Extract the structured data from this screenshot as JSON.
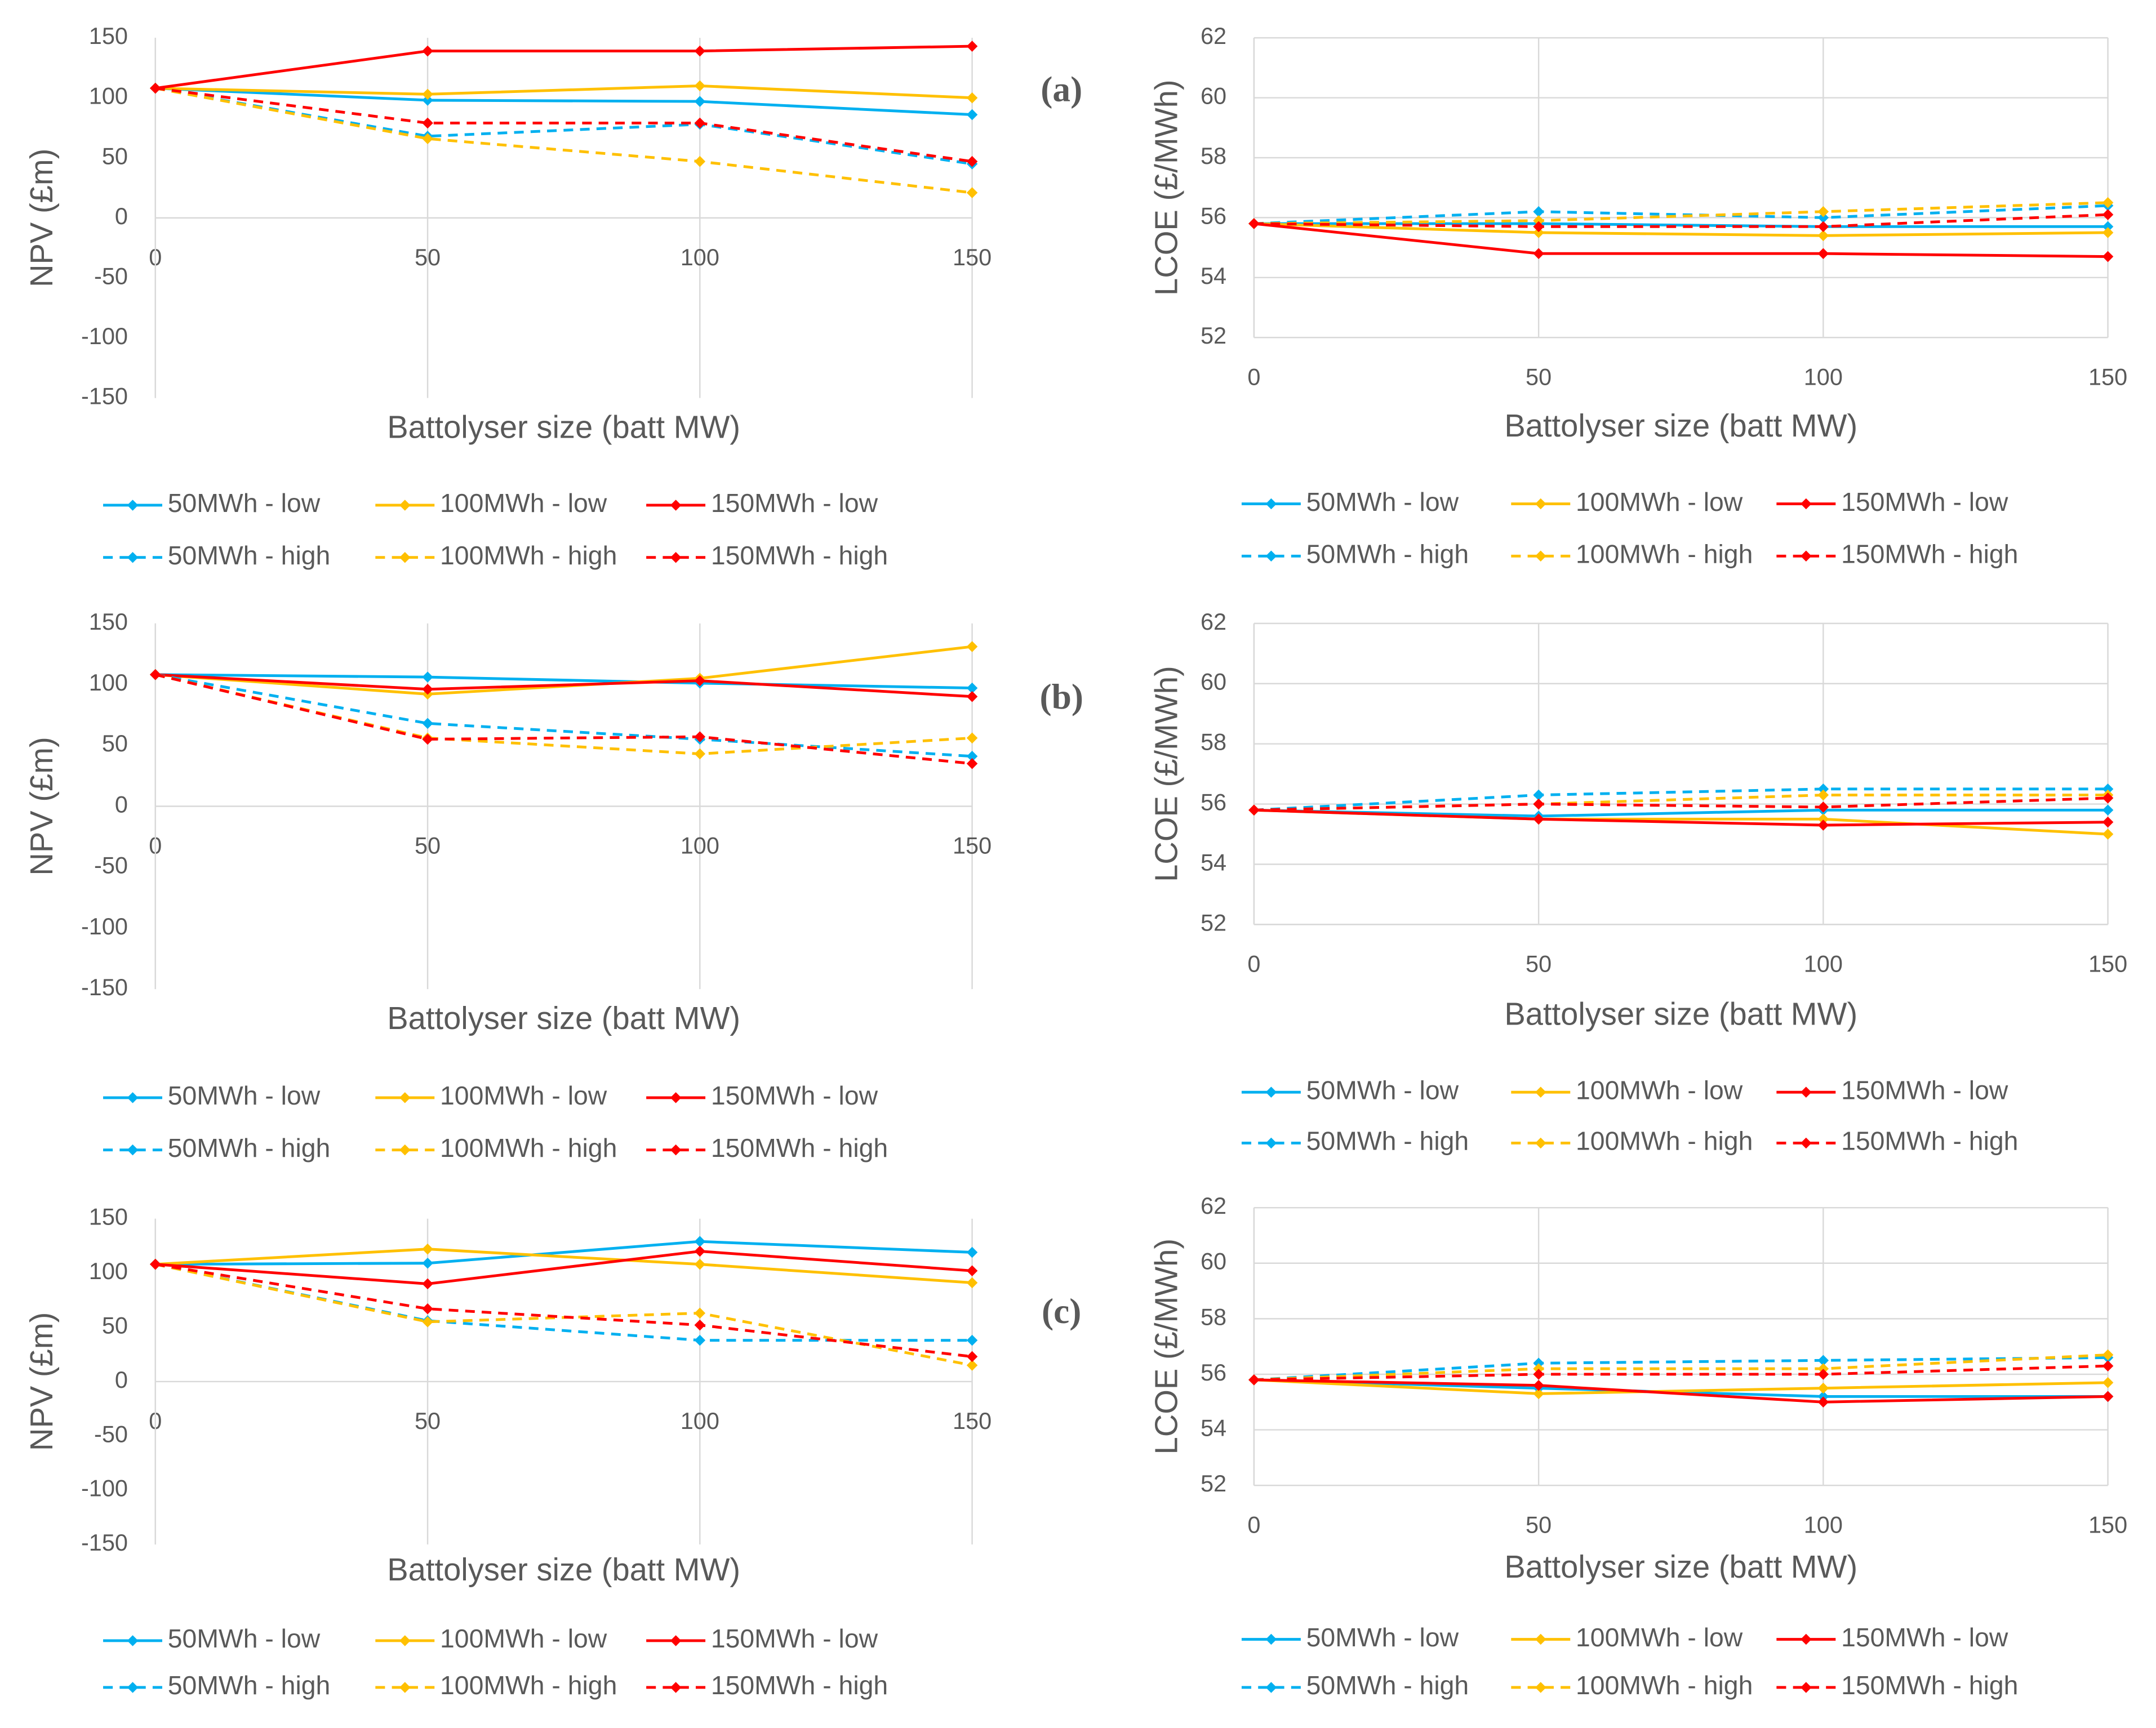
{
  "chart_data": [
    {
      "type": "line",
      "annotation": "(a)",
      "y_label": "NPV (£m)",
      "x_label": "Battolyser  size (batt MW)",
      "label_color": "#000000",
      "x": [
        0,
        50,
        100,
        150
      ],
      "xlim": [
        0,
        150
      ],
      "xticks": [
        0,
        50,
        100,
        150
      ],
      "ylim": [
        -150,
        150
      ],
      "yticks": [
        -150,
        -100,
        -50,
        0,
        50,
        100,
        150
      ],
      "grid": "x",
      "legend": "bottom",
      "series": [
        {
          "name": "50MWh - low",
          "color": "#00b0f0",
          "dashed": false,
          "values": [
            108,
            98,
            97,
            86
          ]
        },
        {
          "name": "100MWh - low",
          "color": "#ffc000",
          "dashed": false,
          "values": [
            108,
            103,
            110,
            100
          ]
        },
        {
          "name": "150MWh - low",
          "color": "#ff0000",
          "dashed": false,
          "values": [
            108,
            139,
            139,
            143
          ]
        },
        {
          "name": "50MWh - high",
          "color": "#00b0f0",
          "dashed": true,
          "values": [
            108,
            68,
            78,
            45
          ]
        },
        {
          "name": "100MWh - high",
          "color": "#ffc000",
          "dashed": true,
          "values": [
            108,
            66,
            47,
            21
          ]
        },
        {
          "name": "150MWh - high",
          "color": "#ff0000",
          "dashed": true,
          "values": [
            108,
            79,
            79,
            47
          ]
        }
      ]
    },
    {
      "type": "line",
      "y_label": "LCOE (£/MWh)",
      "x_label": "Battolyser size (batt MW)",
      "label_color": "#7f7f7f",
      "x": [
        0,
        50,
        100,
        150
      ],
      "xlim": [
        0,
        150
      ],
      "xticks": [
        0,
        50,
        100,
        150
      ],
      "ylim": [
        52,
        62
      ],
      "yticks": [
        52,
        54,
        56,
        58,
        60,
        62
      ],
      "grid": "both",
      "legend": "bottom",
      "series": [
        {
          "name": "50MWh - low",
          "color": "#00b0f0",
          "dashed": false,
          "values": [
            55.8,
            55.8,
            55.7,
            55.7
          ]
        },
        {
          "name": "100MWh - low",
          "color": "#ffc000",
          "dashed": false,
          "values": [
            55.8,
            55.5,
            55.4,
            55.5
          ]
        },
        {
          "name": "150MWh - low",
          "color": "#ff0000",
          "dashed": false,
          "values": [
            55.8,
            54.8,
            54.8,
            54.7
          ]
        },
        {
          "name": "50MWh - high",
          "color": "#00b0f0",
          "dashed": true,
          "values": [
            55.8,
            56.2,
            56.0,
            56.4
          ]
        },
        {
          "name": "100MWh - high",
          "color": "#ffc000",
          "dashed": true,
          "values": [
            55.8,
            55.9,
            56.2,
            56.5
          ]
        },
        {
          "name": "150MWh - high",
          "color": "#ff0000",
          "dashed": true,
          "values": [
            55.8,
            55.7,
            55.7,
            56.1
          ]
        }
      ]
    },
    {
      "type": "line",
      "annotation": "(b)",
      "y_label": "NPV (£m)",
      "x_label": "Battolyser  size (batt MW)",
      "label_color": "#7f7f7f",
      "x": [
        0,
        50,
        100,
        150
      ],
      "xlim": [
        0,
        150
      ],
      "xticks": [
        0,
        50,
        100,
        150
      ],
      "ylim": [
        -150,
        150
      ],
      "yticks": [
        -150,
        -100,
        -50,
        0,
        50,
        100,
        150
      ],
      "grid": "x",
      "legend": "bottom",
      "series": [
        {
          "name": "50MWh - low",
          "color": "#00b0f0",
          "dashed": false,
          "values": [
            108,
            106,
            101,
            97
          ]
        },
        {
          "name": "100MWh - low",
          "color": "#ffc000",
          "dashed": false,
          "values": [
            108,
            92,
            105,
            131
          ]
        },
        {
          "name": "150MWh - low",
          "color": "#ff0000",
          "dashed": false,
          "values": [
            108,
            96,
            103,
            90
          ]
        },
        {
          "name": "50MWh - high",
          "color": "#00b0f0",
          "dashed": true,
          "values": [
            108,
            68,
            55,
            41
          ]
        },
        {
          "name": "100MWh - high",
          "color": "#ffc000",
          "dashed": true,
          "values": [
            108,
            56,
            43,
            56
          ]
        },
        {
          "name": "150MWh - high",
          "color": "#ff0000",
          "dashed": true,
          "values": [
            108,
            55,
            57,
            35
          ]
        }
      ]
    },
    {
      "type": "line",
      "y_label": "LCOE (£/MWh)",
      "x_label": "Battolyser size (batt MW)",
      "label_color": "#000000",
      "x": [
        0,
        50,
        100,
        150
      ],
      "xlim": [
        0,
        150
      ],
      "xticks": [
        0,
        50,
        100,
        150
      ],
      "ylim": [
        52,
        62
      ],
      "yticks": [
        52,
        54,
        56,
        58,
        60,
        62
      ],
      "grid": "both",
      "legend": "bottom",
      "series": [
        {
          "name": "50MWh - low",
          "color": "#00b0f0",
          "dashed": false,
          "values": [
            55.8,
            55.6,
            55.8,
            55.8
          ]
        },
        {
          "name": "100MWh - low",
          "color": "#ffc000",
          "dashed": false,
          "values": [
            55.8,
            55.5,
            55.5,
            55.0
          ]
        },
        {
          "name": "150MWh - low",
          "color": "#ff0000",
          "dashed": false,
          "values": [
            55.8,
            55.5,
            55.3,
            55.4
          ]
        },
        {
          "name": "50MWh - high",
          "color": "#00b0f0",
          "dashed": true,
          "values": [
            55.8,
            56.3,
            56.5,
            56.5
          ]
        },
        {
          "name": "100MWh - high",
          "color": "#ffc000",
          "dashed": true,
          "values": [
            55.8,
            56.0,
            56.3,
            56.3
          ]
        },
        {
          "name": "150MWh - high",
          "color": "#ff0000",
          "dashed": true,
          "values": [
            55.8,
            56.0,
            55.9,
            56.2
          ]
        }
      ]
    },
    {
      "type": "line",
      "annotation": "(c)",
      "y_label": "NPV (£m)",
      "x_label": "Battolyser  size (batt MW)",
      "label_color": "#7f7f7f",
      "x": [
        0,
        50,
        100,
        150
      ],
      "xlim": [
        0,
        150
      ],
      "xticks": [
        0,
        50,
        100,
        150
      ],
      "ylim": [
        -150,
        150
      ],
      "yticks": [
        -150,
        -100,
        -50,
        0,
        50,
        100,
        150
      ],
      "grid": "x",
      "legend": "bottom",
      "series": [
        {
          "name": "50MWh - low",
          "color": "#00b0f0",
          "dashed": false,
          "values": [
            108,
            109,
            129,
            119
          ]
        },
        {
          "name": "100MWh - low",
          "color": "#ffc000",
          "dashed": false,
          "values": [
            108,
            122,
            108,
            91
          ]
        },
        {
          "name": "150MWh - low",
          "color": "#ff0000",
          "dashed": false,
          "values": [
            108,
            90,
            120,
            102
          ]
        },
        {
          "name": "50MWh - high",
          "color": "#00b0f0",
          "dashed": true,
          "values": [
            108,
            56,
            38,
            38
          ]
        },
        {
          "name": "100MWh - high",
          "color": "#ffc000",
          "dashed": true,
          "values": [
            108,
            55,
            63,
            15
          ]
        },
        {
          "name": "150MWh - high",
          "color": "#ff0000",
          "dashed": true,
          "values": [
            108,
            67,
            52,
            23
          ]
        }
      ]
    },
    {
      "type": "line",
      "y_label": "LCOE (£/MWh)",
      "x_label": "Battolyser size (batt MW)",
      "label_color": "#7f7f7f",
      "x": [
        0,
        50,
        100,
        150
      ],
      "xlim": [
        0,
        150
      ],
      "xticks": [
        0,
        50,
        100,
        150
      ],
      "ylim": [
        52,
        62
      ],
      "yticks": [
        52,
        54,
        56,
        58,
        60,
        62
      ],
      "grid": "both",
      "legend": "bottom",
      "series": [
        {
          "name": "50MWh - low",
          "color": "#00b0f0",
          "dashed": false,
          "values": [
            55.8,
            55.5,
            55.2,
            55.2
          ]
        },
        {
          "name": "100MWh - low",
          "color": "#ffc000",
          "dashed": false,
          "values": [
            55.8,
            55.3,
            55.5,
            55.7
          ]
        },
        {
          "name": "150MWh - low",
          "color": "#ff0000",
          "dashed": false,
          "values": [
            55.8,
            55.6,
            55.0,
            55.2
          ]
        },
        {
          "name": "50MWh - high",
          "color": "#00b0f0",
          "dashed": true,
          "values": [
            55.8,
            56.4,
            56.5,
            56.6
          ]
        },
        {
          "name": "100MWh - high",
          "color": "#ffc000",
          "dashed": true,
          "values": [
            55.8,
            56.2,
            56.2,
            56.7
          ]
        },
        {
          "name": "150MWh - high",
          "color": "#ff0000",
          "dashed": true,
          "values": [
            55.8,
            56.0,
            56.0,
            56.3
          ]
        }
      ]
    }
  ]
}
